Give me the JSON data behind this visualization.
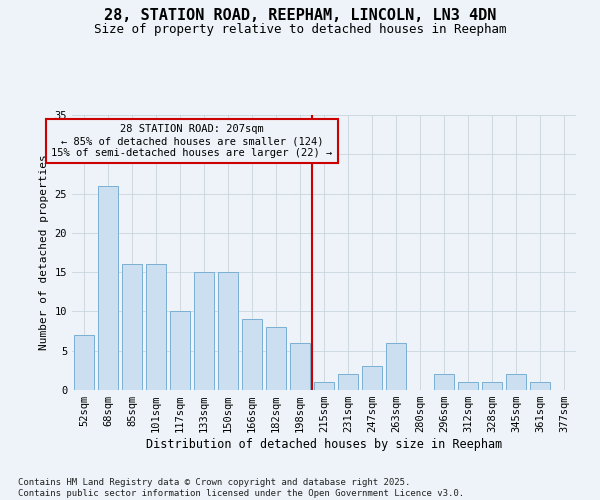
{
  "title": "28, STATION ROAD, REEPHAM, LINCOLN, LN3 4DN",
  "subtitle": "Size of property relative to detached houses in Reepham",
  "xlabel": "Distribution of detached houses by size in Reepham",
  "ylabel": "Number of detached properties",
  "categories": [
    "52sqm",
    "68sqm",
    "85sqm",
    "101sqm",
    "117sqm",
    "133sqm",
    "150sqm",
    "166sqm",
    "182sqm",
    "198sqm",
    "215sqm",
    "231sqm",
    "247sqm",
    "263sqm",
    "280sqm",
    "296sqm",
    "312sqm",
    "328sqm",
    "345sqm",
    "361sqm",
    "377sqm"
  ],
  "values": [
    7,
    26,
    16,
    16,
    10,
    15,
    15,
    9,
    8,
    6,
    1,
    2,
    3,
    6,
    0,
    2,
    1,
    1,
    2,
    1,
    0
  ],
  "bar_color": "#ccdff0",
  "bar_edge_color": "#7ab0d4",
  "grid_color": "#c8d4de",
  "background_color": "#edf3f8",
  "vline_x": 9.5,
  "vline_color": "#cc0000",
  "annotation_title": "28 STATION ROAD: 207sqm",
  "annotation_line1": "← 85% of detached houses are smaller (124)",
  "annotation_line2": "15% of semi-detached houses are larger (22) →",
  "annotation_box_color": "#cc0000",
  "footer": "Contains HM Land Registry data © Crown copyright and database right 2025.\nContains public sector information licensed under the Open Government Licence v3.0.",
  "ylim": [
    0,
    35
  ],
  "yticks": [
    0,
    5,
    10,
    15,
    20,
    25,
    30,
    35
  ],
  "title_fontsize": 11,
  "subtitle_fontsize": 9,
  "ylabel_fontsize": 8,
  "xlabel_fontsize": 8.5,
  "tick_fontsize": 7.5,
  "footer_fontsize": 6.5,
  "ann_fontsize": 7.5
}
